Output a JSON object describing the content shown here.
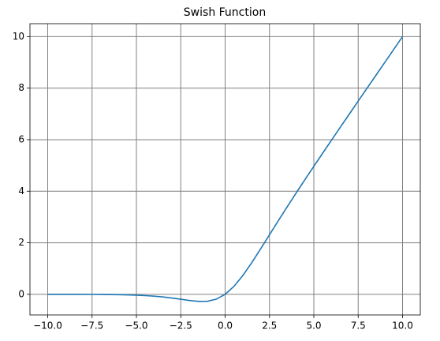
{
  "chart_data": {
    "type": "line",
    "title": "Swish Function",
    "x": [
      -10,
      -9.5,
      -9,
      -8.5,
      -8,
      -7.5,
      -7,
      -6.5,
      -6,
      -5.5,
      -5,
      -4.5,
      -4,
      -3.5,
      -3,
      -2.5,
      -2,
      -1.5,
      -1,
      -0.5,
      0,
      0.5,
      1,
      1.5,
      2,
      2.5,
      3,
      3.5,
      4,
      4.5,
      5,
      5.5,
      6,
      6.5,
      7,
      7.5,
      8,
      8.5,
      9,
      9.5,
      10
    ],
    "series": [
      {
        "color": "#1f77b4",
        "values": [
          -0.000454,
          -0.000711,
          -0.00111,
          -0.00173,
          -0.00268,
          -0.00415,
          -0.00638,
          -0.00976,
          -0.01484,
          -0.02239,
          -0.03346,
          -0.04944,
          -0.07194,
          -0.1026,
          -0.1423,
          -0.1897,
          -0.2384,
          -0.2736,
          -0.2689,
          -0.1888,
          0,
          0.3112,
          0.7311,
          1.2264,
          1.7616,
          2.3103,
          2.8577,
          3.3974,
          3.9281,
          4.4506,
          4.9665,
          5.4776,
          5.9852,
          6.4902,
          6.9936,
          7.4959,
          7.9973,
          8.4983,
          8.9989,
          9.4993,
          9.9995
        ]
      }
    ],
    "xlim": [
      -11,
      11
    ],
    "ylim": [
      -0.8,
      10.5
    ],
    "xticks": [
      {
        "value": -10,
        "label": "−10.0"
      },
      {
        "value": -7.5,
        "label": "−7.5"
      },
      {
        "value": -5,
        "label": "−5.0"
      },
      {
        "value": -2.5,
        "label": "−2.5"
      },
      {
        "value": 0,
        "label": "0.0"
      },
      {
        "value": 2.5,
        "label": "2.5"
      },
      {
        "value": 5,
        "label": "5.0"
      },
      {
        "value": 7.5,
        "label": "7.5"
      },
      {
        "value": 10,
        "label": "10.0"
      }
    ],
    "yticks": [
      0,
      2,
      4,
      6,
      8,
      10
    ],
    "grid": true
  }
}
